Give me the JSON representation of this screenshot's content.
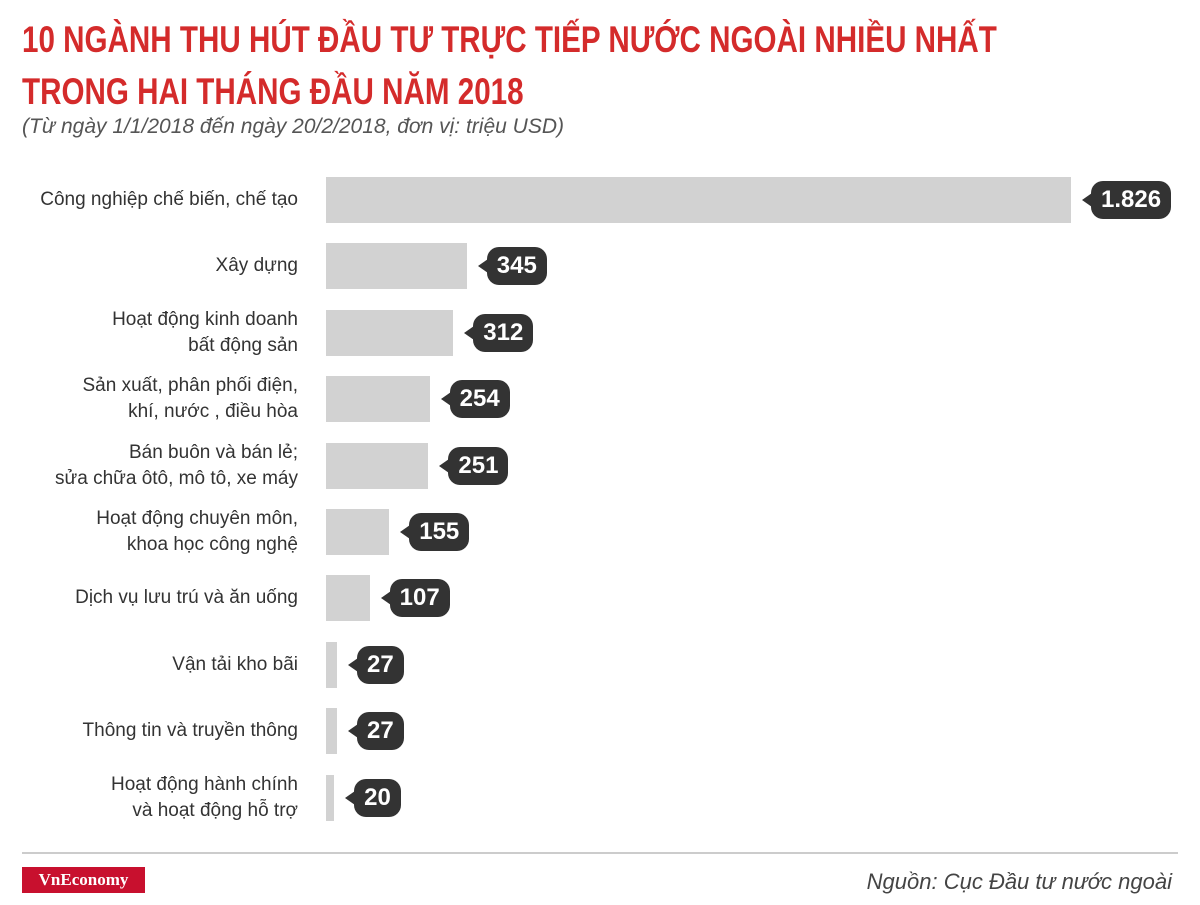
{
  "chart_data": {
    "type": "bar",
    "orientation": "horizontal",
    "title": "10 NGÀNH THU HÚT ĐẦU TƯ TRỰC TIẾP NƯỚC NGOÀI NHIỀU NHẤT\nTRONG HAI THÁNG ĐẦU NĂM 2018",
    "subtitle": "(Từ ngày 1/1/2018 đến ngày 20/2/2018, đơn vị: triệu USD)",
    "categories": [
      "Công nghiệp chế biến, chế tạo",
      "Xây dựng",
      "Hoạt động kinh doanh\nbất động sản",
      "Sản xuất, phân phối điện,\nkhí, nước , điều hòa",
      "Bán buôn và bán lẻ;\nsửa chữa ôtô, mô tô, xe máy",
      "Hoạt động chuyên môn,\nkhoa học công nghệ",
      "Dịch vụ lưu trú và ăn uống",
      "Vận tải kho bãi",
      "Thông tin và truyền thông",
      "Hoạt động hành chính\nvà hoạt động hỗ trợ"
    ],
    "values": [
      1826,
      345,
      312,
      254,
      251,
      155,
      107,
      27,
      27,
      20
    ],
    "value_labels": [
      "1.826",
      "345",
      "312",
      "254",
      "251",
      "155",
      "107",
      "27",
      "27",
      "20"
    ],
    "color": "#d2d2d2",
    "label_color": "#333333",
    "brand": "VnEconomy",
    "source": "Nguồn: Cục Đầu tư nước ngoài"
  }
}
